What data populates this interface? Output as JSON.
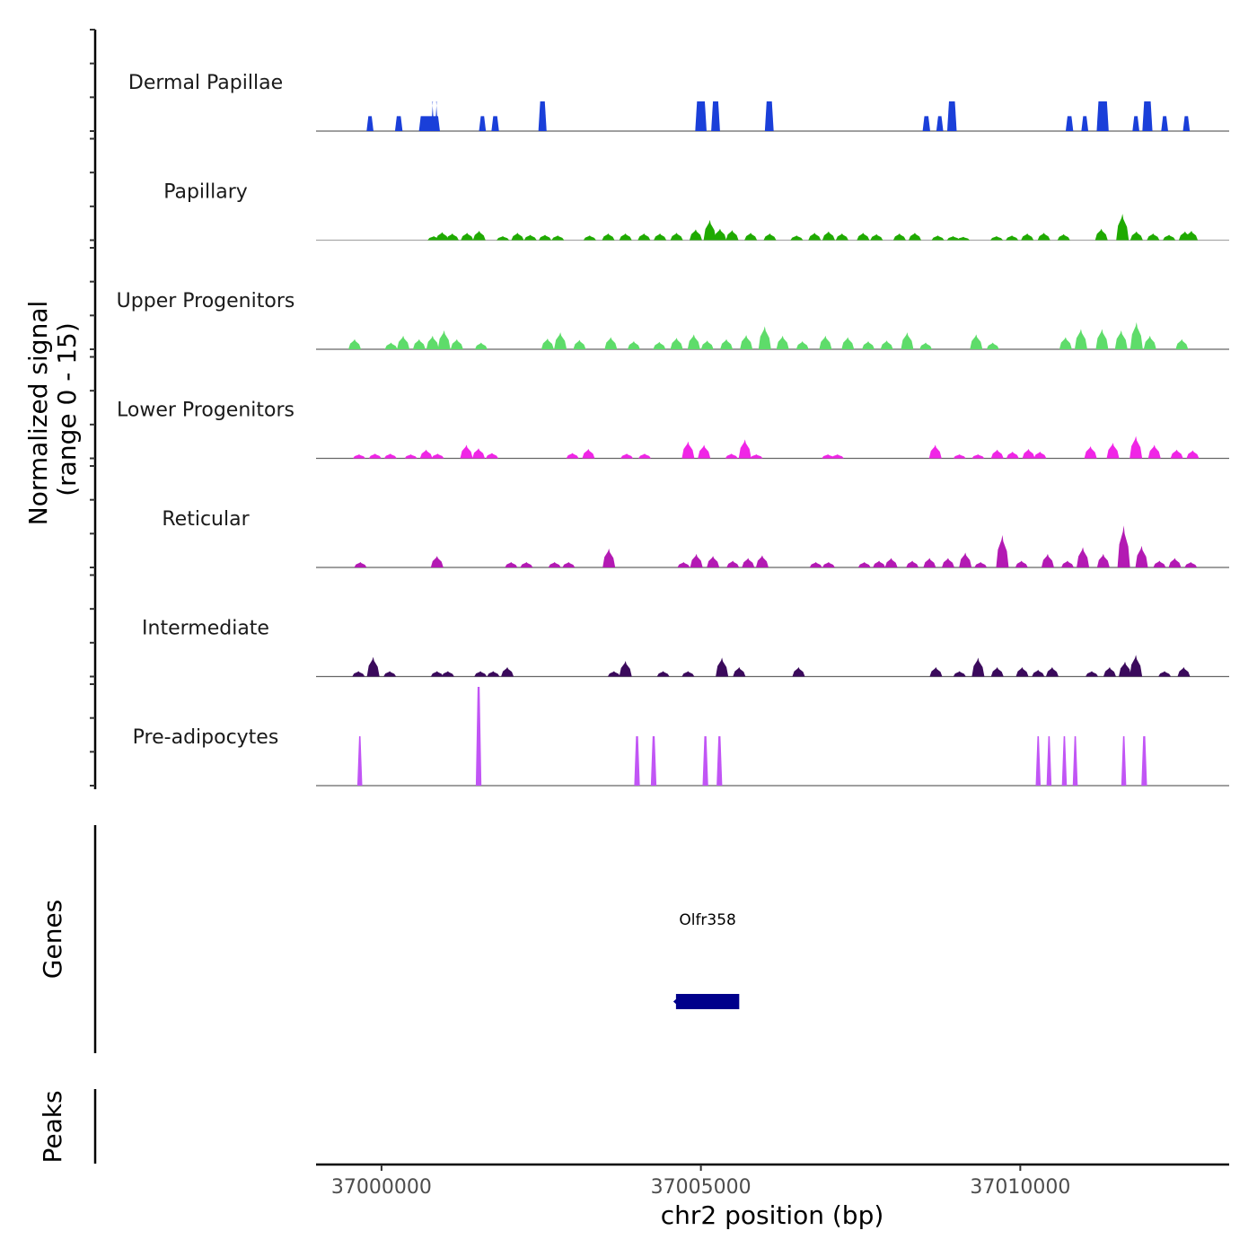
{
  "chart_data": {
    "type": "area",
    "title": "",
    "xlabel": "chr2 position (bp)",
    "ylabel": "Normalized signal\n(range 0 - 15)",
    "ylabel_lines": [
      "Normalized signal",
      "(range 0 - 15)"
    ],
    "ylim": [
      0,
      15
    ],
    "xlim": [
      36998975,
      37013270
    ],
    "x_ticks": [
      37000000,
      37005000,
      37010000
    ],
    "x_tick_labels": [
      "37000000",
      "37005000",
      "37010000"
    ],
    "grid": false,
    "legend": "none",
    "series": [
      {
        "name": "Dermal Papillae",
        "color": "#1A3FD9",
        "peaks": [
          [
            36999820,
            2.2,
            80
          ],
          [
            37000270,
            2.2,
            90
          ],
          [
            37000750,
            2.2,
            300
          ],
          [
            37000800,
            4.4,
            20
          ],
          [
            37000860,
            4.4,
            20
          ],
          [
            37001580,
            2.2,
            80
          ],
          [
            37001780,
            2.2,
            90
          ],
          [
            37002520,
            4.4,
            100
          ],
          [
            37005000,
            4.4,
            150
          ],
          [
            37005230,
            4.4,
            110
          ],
          [
            37006070,
            4.4,
            110
          ],
          [
            37008530,
            2.2,
            90
          ],
          [
            37008740,
            2.2,
            80
          ],
          [
            37008930,
            4.4,
            120
          ],
          [
            37010770,
            2.2,
            90
          ],
          [
            37011010,
            2.2,
            80
          ],
          [
            37011290,
            4.4,
            160
          ],
          [
            37011810,
            2.2,
            80
          ],
          [
            37011990,
            4.4,
            130
          ],
          [
            37012260,
            2.2,
            80
          ],
          [
            37012600,
            2.2,
            80
          ]
        ]
      },
      {
        "name": "Papillary",
        "color": "#1FAA00",
        "profile": [
          [
            37000820,
            0.6
          ],
          [
            37000950,
            1.2
          ],
          [
            37001110,
            1.0
          ],
          [
            37001340,
            1.1
          ],
          [
            37001530,
            1.4
          ],
          [
            37001900,
            0.6
          ],
          [
            37002130,
            1.1
          ],
          [
            37002330,
            0.8
          ],
          [
            37002560,
            0.8
          ],
          [
            37002760,
            0.7
          ],
          [
            37003260,
            0.7
          ],
          [
            37003550,
            1.0
          ],
          [
            37003820,
            1.0
          ],
          [
            37004110,
            1.0
          ],
          [
            37004360,
            1.0
          ],
          [
            37004620,
            1.1
          ],
          [
            37004920,
            1.6
          ],
          [
            37005140,
            3.0
          ],
          [
            37005300,
            1.7
          ],
          [
            37005490,
            1.5
          ],
          [
            37005780,
            1.1
          ],
          [
            37006080,
            1.0
          ],
          [
            37006500,
            0.7
          ],
          [
            37006780,
            1.1
          ],
          [
            37007000,
            1.3
          ],
          [
            37007210,
            1.0
          ],
          [
            37007540,
            1.1
          ],
          [
            37007750,
            0.9
          ],
          [
            37008110,
            1.0
          ],
          [
            37008350,
            1.1
          ],
          [
            37008710,
            0.7
          ],
          [
            37008950,
            0.6
          ],
          [
            37009110,
            0.5
          ],
          [
            37009630,
            0.6
          ],
          [
            37009870,
            0.7
          ],
          [
            37010110,
            1.0
          ],
          [
            37010370,
            1.1
          ],
          [
            37010680,
            0.9
          ],
          [
            37011270,
            1.7
          ],
          [
            37011600,
            3.9
          ],
          [
            37011820,
            1.3
          ],
          [
            37012080,
            1.0
          ],
          [
            37012330,
            0.8
          ],
          [
            37012580,
            1.3
          ],
          [
            37012680,
            1.4
          ]
        ]
      },
      {
        "name": "Upper Progenitors",
        "color": "#5EDC6A",
        "profile": [
          [
            36999580,
            1.5
          ],
          [
            37000150,
            1.0
          ],
          [
            37000340,
            2.0
          ],
          [
            37000590,
            1.5
          ],
          [
            37000800,
            2.0
          ],
          [
            37000980,
            2.8
          ],
          [
            37001180,
            1.5
          ],
          [
            37001560,
            1.0
          ],
          [
            37002600,
            1.6
          ],
          [
            37002800,
            2.5
          ],
          [
            37003100,
            1.4
          ],
          [
            37003590,
            1.8
          ],
          [
            37003950,
            1.2
          ],
          [
            37004350,
            1.1
          ],
          [
            37004620,
            1.7
          ],
          [
            37004890,
            2.2
          ],
          [
            37005100,
            1.3
          ],
          [
            37005400,
            1.5
          ],
          [
            37005710,
            2.1
          ],
          [
            37006000,
            3.4
          ],
          [
            37006280,
            2.0
          ],
          [
            37006590,
            1.2
          ],
          [
            37006950,
            2.0
          ],
          [
            37007300,
            1.8
          ],
          [
            37007620,
            1.2
          ],
          [
            37007910,
            1.3
          ],
          [
            37008230,
            2.5
          ],
          [
            37008520,
            1.0
          ],
          [
            37009310,
            2.2
          ],
          [
            37009570,
            1.0
          ],
          [
            37010710,
            1.8
          ],
          [
            37010950,
            3.0
          ],
          [
            37011280,
            3.0
          ],
          [
            37011580,
            2.8
          ],
          [
            37011820,
            4.0
          ],
          [
            37012030,
            2.0
          ],
          [
            37012530,
            1.5
          ]
        ]
      },
      {
        "name": "Lower Progenitors",
        "color": "#F025E6",
        "profile": [
          [
            36999650,
            0.6
          ],
          [
            36999900,
            0.7
          ],
          [
            37000140,
            0.7
          ],
          [
            37000460,
            0.6
          ],
          [
            37000700,
            1.3
          ],
          [
            37000880,
            0.7
          ],
          [
            37001330,
            2.0
          ],
          [
            37001520,
            1.5
          ],
          [
            37001730,
            0.8
          ],
          [
            37002990,
            0.8
          ],
          [
            37003240,
            1.4
          ],
          [
            37003840,
            0.7
          ],
          [
            37004120,
            0.7
          ],
          [
            37004800,
            2.5
          ],
          [
            37005050,
            2.0
          ],
          [
            37005480,
            0.7
          ],
          [
            37005690,
            2.8
          ],
          [
            37005870,
            0.6
          ],
          [
            37006990,
            0.6
          ],
          [
            37007140,
            0.6
          ],
          [
            37008670,
            2.0
          ],
          [
            37009050,
            0.6
          ],
          [
            37009340,
            0.6
          ],
          [
            37009640,
            1.3
          ],
          [
            37009880,
            1.0
          ],
          [
            37010130,
            1.4
          ],
          [
            37010310,
            1.0
          ],
          [
            37011100,
            1.8
          ],
          [
            37011450,
            2.3
          ],
          [
            37011810,
            3.3
          ],
          [
            37012100,
            2.0
          ],
          [
            37012450,
            1.3
          ],
          [
            37012700,
            1.2
          ]
        ]
      },
      {
        "name": "Reticular",
        "color": "#B31AB3",
        "profile": [
          [
            36999670,
            0.8
          ],
          [
            37000870,
            1.7
          ],
          [
            37002030,
            0.8
          ],
          [
            37002270,
            0.8
          ],
          [
            37002710,
            0.8
          ],
          [
            37002930,
            0.8
          ],
          [
            37003560,
            2.8
          ],
          [
            37004730,
            0.8
          ],
          [
            37004930,
            2.0
          ],
          [
            37005190,
            1.7
          ],
          [
            37005500,
            1.0
          ],
          [
            37005740,
            1.4
          ],
          [
            37005960,
            1.8
          ],
          [
            37006800,
            0.8
          ],
          [
            37007000,
            0.8
          ],
          [
            37007560,
            0.8
          ],
          [
            37007790,
            1.0
          ],
          [
            37007980,
            1.4
          ],
          [
            37008310,
            1.0
          ],
          [
            37008580,
            1.4
          ],
          [
            37008870,
            1.4
          ],
          [
            37009140,
            2.2
          ],
          [
            37009380,
            0.8
          ],
          [
            37009720,
            4.8
          ],
          [
            37010020,
            1.0
          ],
          [
            37010430,
            2.0
          ],
          [
            37010740,
            1.0
          ],
          [
            37010980,
            3.0
          ],
          [
            37011300,
            2.0
          ],
          [
            37011620,
            6.2
          ],
          [
            37011900,
            3.2
          ],
          [
            37012180,
            1.0
          ],
          [
            37012420,
            1.4
          ],
          [
            37012670,
            0.8
          ]
        ]
      },
      {
        "name": "Intermediate",
        "color": "#3B0A5C",
        "profile": [
          [
            36999640,
            0.8
          ],
          [
            36999870,
            2.9
          ],
          [
            37000130,
            0.8
          ],
          [
            37000870,
            0.8
          ],
          [
            37001040,
            0.8
          ],
          [
            37001550,
            0.8
          ],
          [
            37001750,
            0.8
          ],
          [
            37001970,
            1.4
          ],
          [
            37003640,
            0.8
          ],
          [
            37003820,
            2.3
          ],
          [
            37004410,
            0.8
          ],
          [
            37004800,
            0.8
          ],
          [
            37005330,
            2.8
          ],
          [
            37005600,
            1.4
          ],
          [
            37006530,
            1.4
          ],
          [
            37008680,
            1.4
          ],
          [
            37009050,
            0.8
          ],
          [
            37009340,
            2.8
          ],
          [
            37009640,
            1.4
          ],
          [
            37010030,
            1.4
          ],
          [
            37010280,
            1.0
          ],
          [
            37010500,
            1.4
          ],
          [
            37011120,
            0.8
          ],
          [
            37011400,
            1.4
          ],
          [
            37011640,
            2.2
          ],
          [
            37011810,
            3.2
          ],
          [
            37012260,
            0.8
          ],
          [
            37012560,
            1.4
          ]
        ]
      },
      {
        "name": "Pre-adipocytes",
        "color": "#C155F5",
        "peaks": [
          [
            36999660,
            7.3,
            50
          ],
          [
            37001520,
            14.6,
            60
          ],
          [
            37004000,
            7.3,
            60
          ],
          [
            37004260,
            7.3,
            60
          ],
          [
            37005070,
            7.3,
            60
          ],
          [
            37005290,
            7.3,
            60
          ],
          [
            37010280,
            7.3,
            50
          ],
          [
            37010450,
            7.3,
            50
          ],
          [
            37010690,
            7.3,
            50
          ],
          [
            37010860,
            7.3,
            50
          ],
          [
            37011620,
            7.3,
            50
          ],
          [
            37011940,
            7.3,
            60
          ]
        ]
      }
    ],
    "genes_track": {
      "label": "Genes",
      "genes": [
        {
          "name": "Olfr358",
          "start": 37004610,
          "end": 37005600,
          "strand": "-",
          "color": "#00008B"
        }
      ]
    },
    "peaks_track": {
      "label": "Peaks",
      "regions": []
    }
  }
}
